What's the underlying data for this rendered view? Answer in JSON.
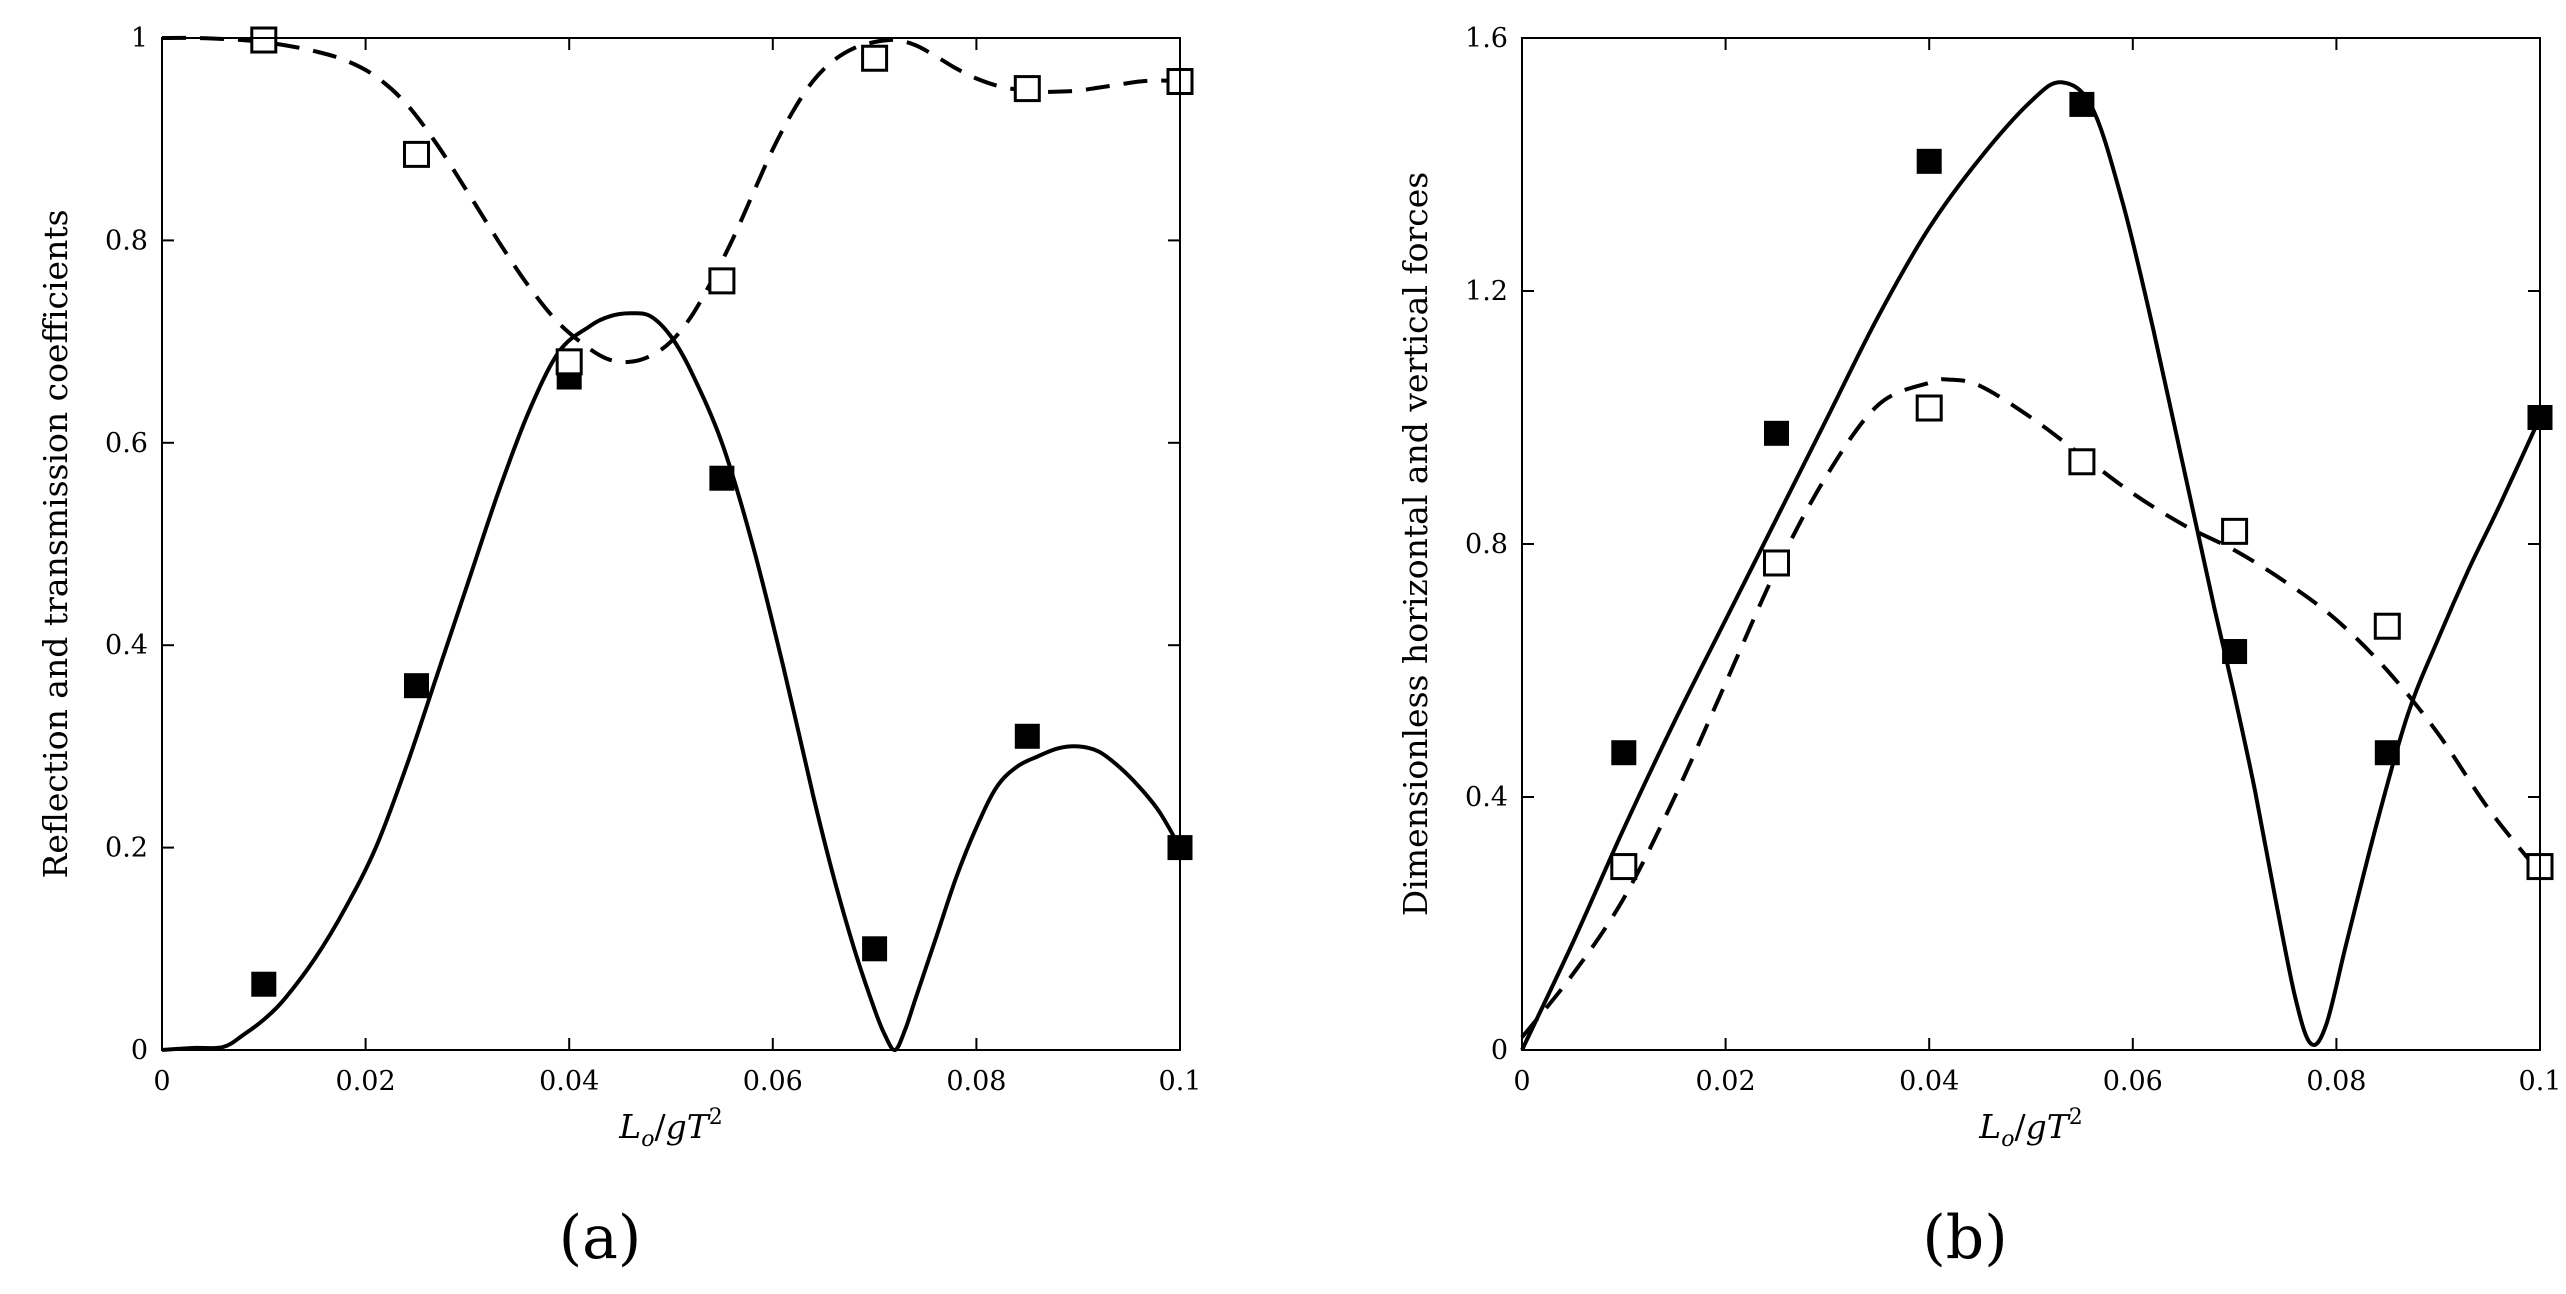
{
  "figure": {
    "panel_labels": [
      "(a)",
      "(b)"
    ]
  },
  "chart_data": [
    {
      "type": "line",
      "panel": "(a)",
      "xlabel": "L_o/gT^2",
      "ylabel": "Reflection and transmission coefficients",
      "xlim": [
        0,
        0.1
      ],
      "ylim": [
        0,
        1
      ],
      "xticks": [
        0,
        0.02,
        0.04,
        0.06,
        0.08,
        0.1
      ],
      "xtick_labels": [
        "0",
        "0.02",
        "0.04",
        "0.06",
        "0.08",
        "0.1"
      ],
      "yticks": [
        0,
        0.2,
        0.4,
        0.6,
        0.8,
        1
      ],
      "ytick_labels": [
        "0",
        "0.2",
        "0.4",
        "0.6",
        "0.8",
        "1"
      ],
      "grid": false,
      "series": [
        {
          "name": "reflection-curve",
          "kind": "line",
          "style": "solid",
          "color": "#000000",
          "x": [
            0,
            0.003,
            0.006,
            0.008,
            0.01,
            0.012,
            0.015,
            0.018,
            0.021,
            0.024,
            0.027,
            0.03,
            0.033,
            0.036,
            0.039,
            0.042,
            0.044,
            0.046,
            0.048,
            0.05,
            0.052,
            0.055,
            0.058,
            0.061,
            0.064,
            0.066,
            0.068,
            0.07,
            0.071,
            0.072,
            0.073,
            0.074,
            0.076,
            0.078,
            0.08,
            0.082,
            0.084,
            0.086,
            0.088,
            0.09,
            0.092,
            0.094,
            0.096,
            0.098,
            0.1
          ],
          "y": [
            0,
            0.002,
            0.003,
            0.015,
            0.03,
            0.05,
            0.09,
            0.14,
            0.2,
            0.28,
            0.37,
            0.46,
            0.55,
            0.63,
            0.69,
            0.715,
            0.725,
            0.728,
            0.725,
            0.705,
            0.67,
            0.6,
            0.5,
            0.38,
            0.25,
            0.17,
            0.1,
            0.04,
            0.015,
            0,
            0.02,
            0.05,
            0.11,
            0.17,
            0.22,
            0.26,
            0.28,
            0.29,
            0.298,
            0.3,
            0.295,
            0.28,
            0.26,
            0.235,
            0.2
          ]
        },
        {
          "name": "transmission-curve",
          "kind": "line",
          "style": "dashed",
          "color": "#000000",
          "x": [
            0,
            0.003,
            0.006,
            0.009,
            0.012,
            0.015,
            0.018,
            0.021,
            0.024,
            0.027,
            0.03,
            0.033,
            0.036,
            0.039,
            0.042,
            0.044,
            0.046,
            0.048,
            0.05,
            0.052,
            0.054,
            0.056,
            0.058,
            0.06,
            0.062,
            0.064,
            0.066,
            0.068,
            0.07,
            0.072,
            0.074,
            0.076,
            0.078,
            0.08,
            0.082,
            0.084,
            0.086,
            0.088,
            0.09,
            0.092,
            0.094,
            0.096,
            0.098,
            0.1
          ],
          "y": [
            1,
            1,
            0.999,
            0.997,
            0.993,
            0.987,
            0.978,
            0.962,
            0.935,
            0.895,
            0.848,
            0.8,
            0.755,
            0.718,
            0.693,
            0.682,
            0.68,
            0.686,
            0.7,
            0.725,
            0.76,
            0.8,
            0.845,
            0.89,
            0.928,
            0.958,
            0.978,
            0.99,
            0.996,
            0.998,
            0.993,
            0.982,
            0.97,
            0.96,
            0.953,
            0.949,
            0.947,
            0.947,
            0.948,
            0.951,
            0.954,
            0.957,
            0.958,
            0.957
          ]
        },
        {
          "name": "reflection-data",
          "kind": "scatter",
          "marker": "filled-square",
          "color": "#000000",
          "x": [
            0.01,
            0.025,
            0.04,
            0.055,
            0.07,
            0.085,
            0.1
          ],
          "y": [
            0.065,
            0.36,
            0.665,
            0.565,
            0.1,
            0.31,
            0.2
          ]
        },
        {
          "name": "transmission-data",
          "kind": "scatter",
          "marker": "open-square",
          "color": "#000000",
          "x": [
            0.01,
            0.025,
            0.04,
            0.055,
            0.07,
            0.085,
            0.1
          ],
          "y": [
            0.998,
            0.885,
            0.68,
            0.76,
            0.98,
            0.95,
            0.957
          ]
        }
      ]
    },
    {
      "type": "line",
      "panel": "(b)",
      "xlabel": "L_o/gT^2",
      "ylabel": "Dimensionless horizontal and vertical forces",
      "xlim": [
        0,
        0.1
      ],
      "ylim": [
        0,
        1.6
      ],
      "xticks": [
        0,
        0.02,
        0.04,
        0.06,
        0.08,
        0.1
      ],
      "xtick_labels": [
        "0",
        "0.02",
        "0.04",
        "0.06",
        "0.08",
        "0.1"
      ],
      "yticks": [
        0,
        0.4,
        0.8,
        1.2,
        1.6
      ],
      "ytick_labels": [
        "0",
        "0.4",
        "0.8",
        "1.2",
        "1.6"
      ],
      "grid": false,
      "series": [
        {
          "name": "horizontal-force-curve",
          "kind": "line",
          "style": "solid",
          "color": "#000000",
          "x": [
            0,
            0.005,
            0.01,
            0.015,
            0.02,
            0.025,
            0.03,
            0.035,
            0.04,
            0.045,
            0.05,
            0.053,
            0.056,
            0.059,
            0.062,
            0.065,
            0.068,
            0.07,
            0.072,
            0.074,
            0.076,
            0.0775,
            0.079,
            0.081,
            0.084,
            0.087,
            0.09,
            0.093,
            0.096,
            0.1
          ],
          "y": [
            0,
            0.17,
            0.35,
            0.52,
            0.68,
            0.84,
            1.0,
            1.16,
            1.3,
            1.41,
            1.5,
            1.53,
            1.49,
            1.34,
            1.14,
            0.92,
            0.7,
            0.56,
            0.41,
            0.24,
            0.08,
            0.01,
            0.04,
            0.17,
            0.36,
            0.53,
            0.65,
            0.76,
            0.86,
            1.0
          ]
        },
        {
          "name": "vertical-force-curve",
          "kind": "line",
          "style": "dashed",
          "color": "#000000",
          "x": [
            0,
            0.005,
            0.01,
            0.015,
            0.02,
            0.025,
            0.03,
            0.035,
            0.04,
            0.042,
            0.045,
            0.05,
            0.055,
            0.06,
            0.065,
            0.07,
            0.075,
            0.08,
            0.085,
            0.09,
            0.095,
            0.1
          ],
          "y": [
            0.02,
            0.12,
            0.24,
            0.4,
            0.58,
            0.76,
            0.91,
            1.02,
            1.055,
            1.06,
            1.05,
            1.0,
            0.94,
            0.88,
            0.83,
            0.79,
            0.74,
            0.68,
            0.6,
            0.5,
            0.38,
            0.28
          ]
        },
        {
          "name": "horizontal-force-data",
          "kind": "scatter",
          "marker": "filled-square",
          "color": "#000000",
          "x": [
            0.01,
            0.025,
            0.04,
            0.055,
            0.07,
            0.085,
            0.1
          ],
          "y": [
            0.47,
            0.975,
            1.405,
            1.495,
            0.63,
            0.47,
            1.0
          ]
        },
        {
          "name": "vertical-force-data",
          "kind": "scatter",
          "marker": "open-square",
          "color": "#000000",
          "x": [
            0.01,
            0.025,
            0.04,
            0.055,
            0.07,
            0.085,
            0.1
          ],
          "y": [
            0.29,
            0.77,
            1.015,
            0.93,
            0.82,
            0.67,
            0.29
          ]
        }
      ]
    }
  ]
}
